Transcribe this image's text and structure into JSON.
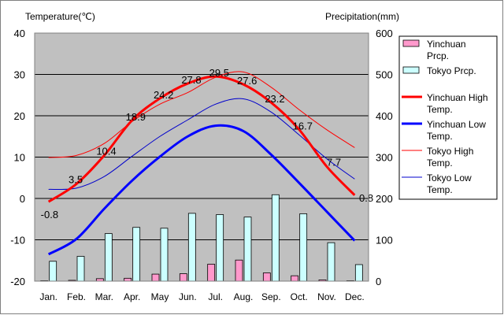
{
  "chart_data": {
    "type": "bar+line",
    "categories": [
      "Jan.",
      "Feb.",
      "Mar.",
      "Apr.",
      "May",
      "Jun.",
      "Jul.",
      "Aug.",
      "Sep.",
      "Oct.",
      "Nov.",
      "Dec."
    ],
    "y_left": {
      "title": "Temperature(℃)",
      "range": [
        -20,
        40
      ],
      "ticks": [
        -20,
        -10,
        0,
        10,
        20,
        30,
        40
      ]
    },
    "y_right": {
      "title": "Precipitation(mm)",
      "range": [
        0,
        600
      ],
      "ticks": [
        0,
        100,
        200,
        300,
        400,
        500,
        600
      ]
    },
    "grid": true,
    "legend_position": "right",
    "bar_series": [
      {
        "name": "Yinchuan Prcp.",
        "color": "#ff99cc",
        "values": [
          1,
          2,
          6,
          7,
          17,
          18,
          41,
          51,
          20,
          13,
          3,
          1
        ]
      },
      {
        "name": "Tokyo Prcp.",
        "color": "#ccffff",
        "values": [
          48,
          60,
          115,
          130,
          128,
          164,
          161,
          155,
          209,
          163,
          93,
          40
        ]
      }
    ],
    "line_series": [
      {
        "name": "Yinchuan High Temp.",
        "color": "#ff0000",
        "width": 3,
        "values": [
          -0.8,
          3.5,
          10.4,
          18.9,
          24.2,
          27.8,
          29.5,
          27.6,
          23.2,
          16.7,
          7.7,
          0.8
        ],
        "labels": [
          "-0.8",
          "3.5",
          "10.4",
          "18.9",
          "24.2",
          "27.8",
          "29.5",
          "27.6",
          "23.2",
          "16.7",
          "7.7",
          "0.8"
        ]
      },
      {
        "name": "Yinchuan Low Temp.",
        "color": "#0000ff",
        "width": 3,
        "values": [
          -13.5,
          -9.8,
          -2.5,
          4.3,
          10.1,
          15.0,
          17.6,
          16.3,
          10.6,
          3.8,
          -3.2,
          -10.2
        ]
      },
      {
        "name": "Tokyo High Temp.",
        "color": "#ff0000",
        "width": 1,
        "values": [
          9.9,
          10.4,
          13.3,
          18.6,
          22.8,
          25.6,
          29.3,
          30.6,
          26.9,
          21.5,
          16.6,
          12.3
        ]
      },
      {
        "name": "Tokyo Low Temp.",
        "color": "#0000cc",
        "width": 1,
        "values": [
          2.2,
          2.5,
          5.3,
          10.2,
          15.0,
          19.0,
          22.8,
          24.1,
          20.9,
          15.4,
          9.6,
          4.7
        ]
      }
    ]
  },
  "legend": {
    "items": [
      {
        "label_line1": "Yinchuan",
        "label_line2": "Prcp."
      },
      {
        "label_line1": "Tokyo Prcp.",
        "label_line2": ""
      },
      {
        "label_line1": "Yinchuan High",
        "label_line2": "Temp."
      },
      {
        "label_line1": "Yinchuan Low",
        "label_line2": "Temp."
      },
      {
        "label_line1": "Tokyo High",
        "label_line2": "Temp."
      },
      {
        "label_line1": "Tokyo Low",
        "label_line2": "Temp."
      }
    ]
  },
  "colors": {
    "plot_background": "#c0c0c0",
    "grid": "#000000"
  }
}
